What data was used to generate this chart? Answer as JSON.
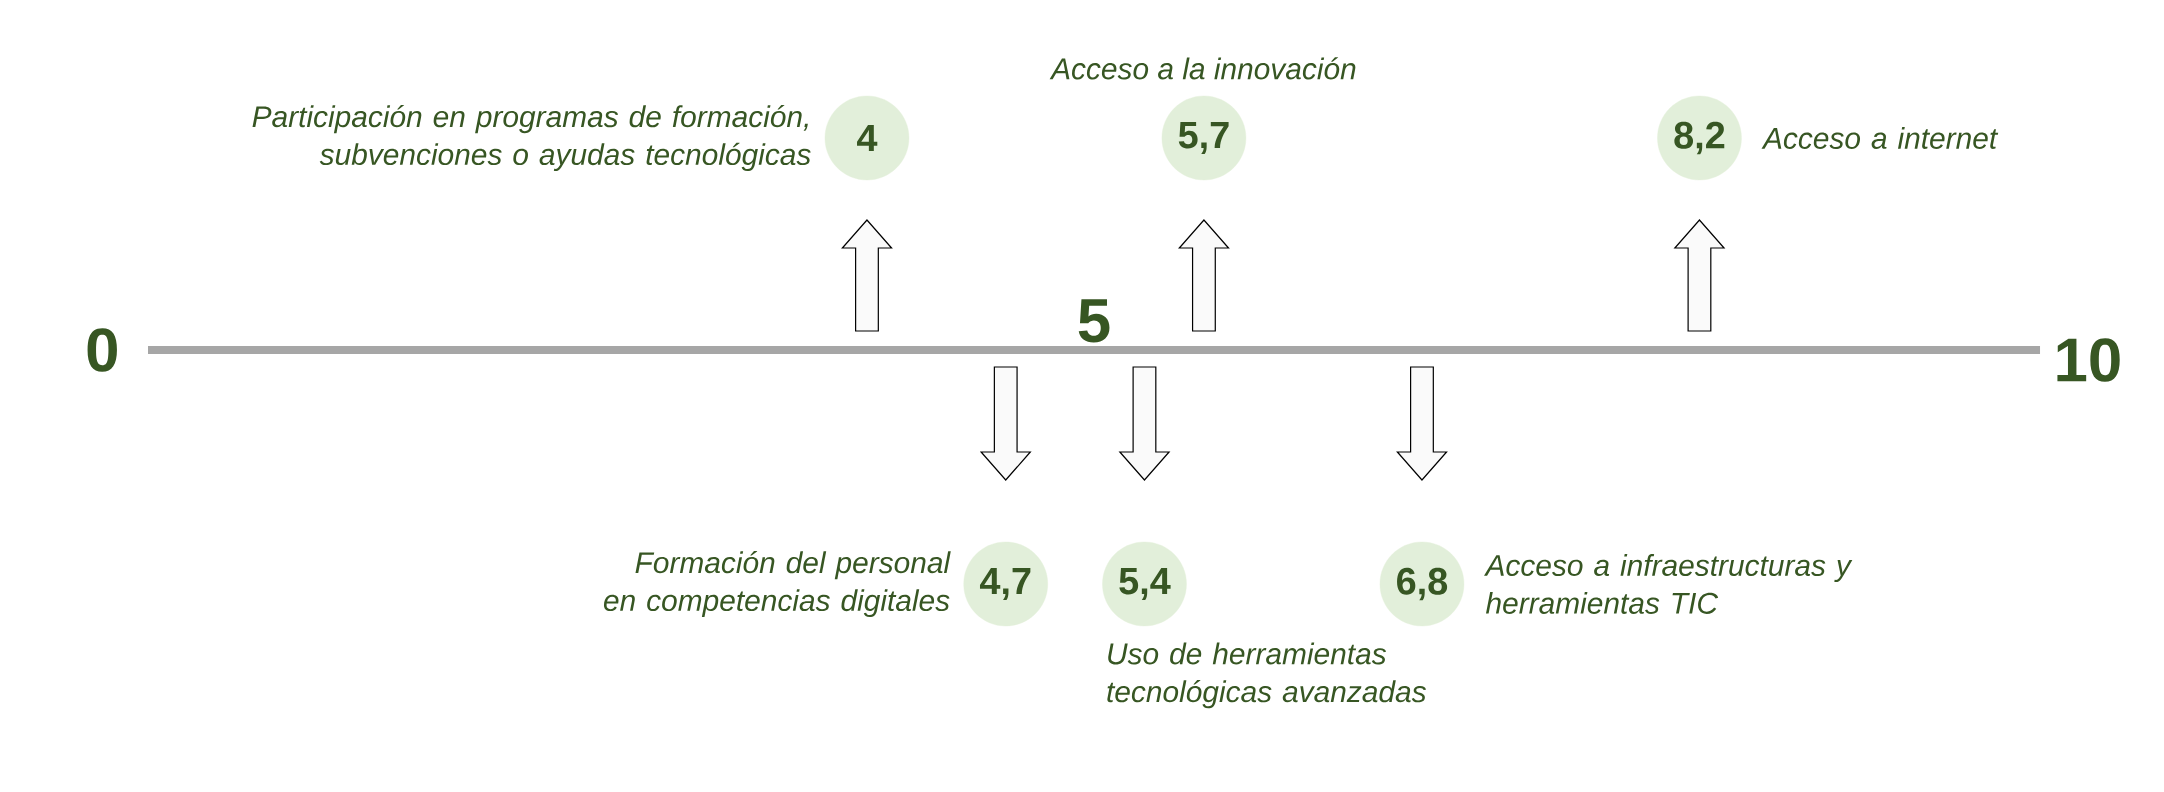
{
  "chart_data": {
    "type": "other",
    "categories": [
      "Participación en programas de formación, subvenciones o ayudas tecnológicas",
      "Formación del personal en competencias digitales",
      "Uso de herramientas tecnológicas avanzadas",
      "Acceso a la innovación",
      "Acceso a infraestructuras y herramientas TIC",
      "Acceso a internet"
    ],
    "series": [
      {
        "color": "#e2efda",
        "values": [
          4,
          null,
          null,
          5.7,
          null,
          8.2
        ],
        "value_labels": [
          "4",
          null,
          null,
          "5,7",
          null,
          "8,2"
        ]
      },
      {
        "color": "#e2efda",
        "values": [
          null,
          4.7,
          5.4,
          null,
          6.8,
          null
        ],
        "value_labels": [
          null,
          "4,7",
          "5,4",
          null,
          "6,8",
          null
        ]
      }
    ],
    "data_labels": true,
    "annotations": [
      "0",
      "5",
      "10"
    ]
  }
}
